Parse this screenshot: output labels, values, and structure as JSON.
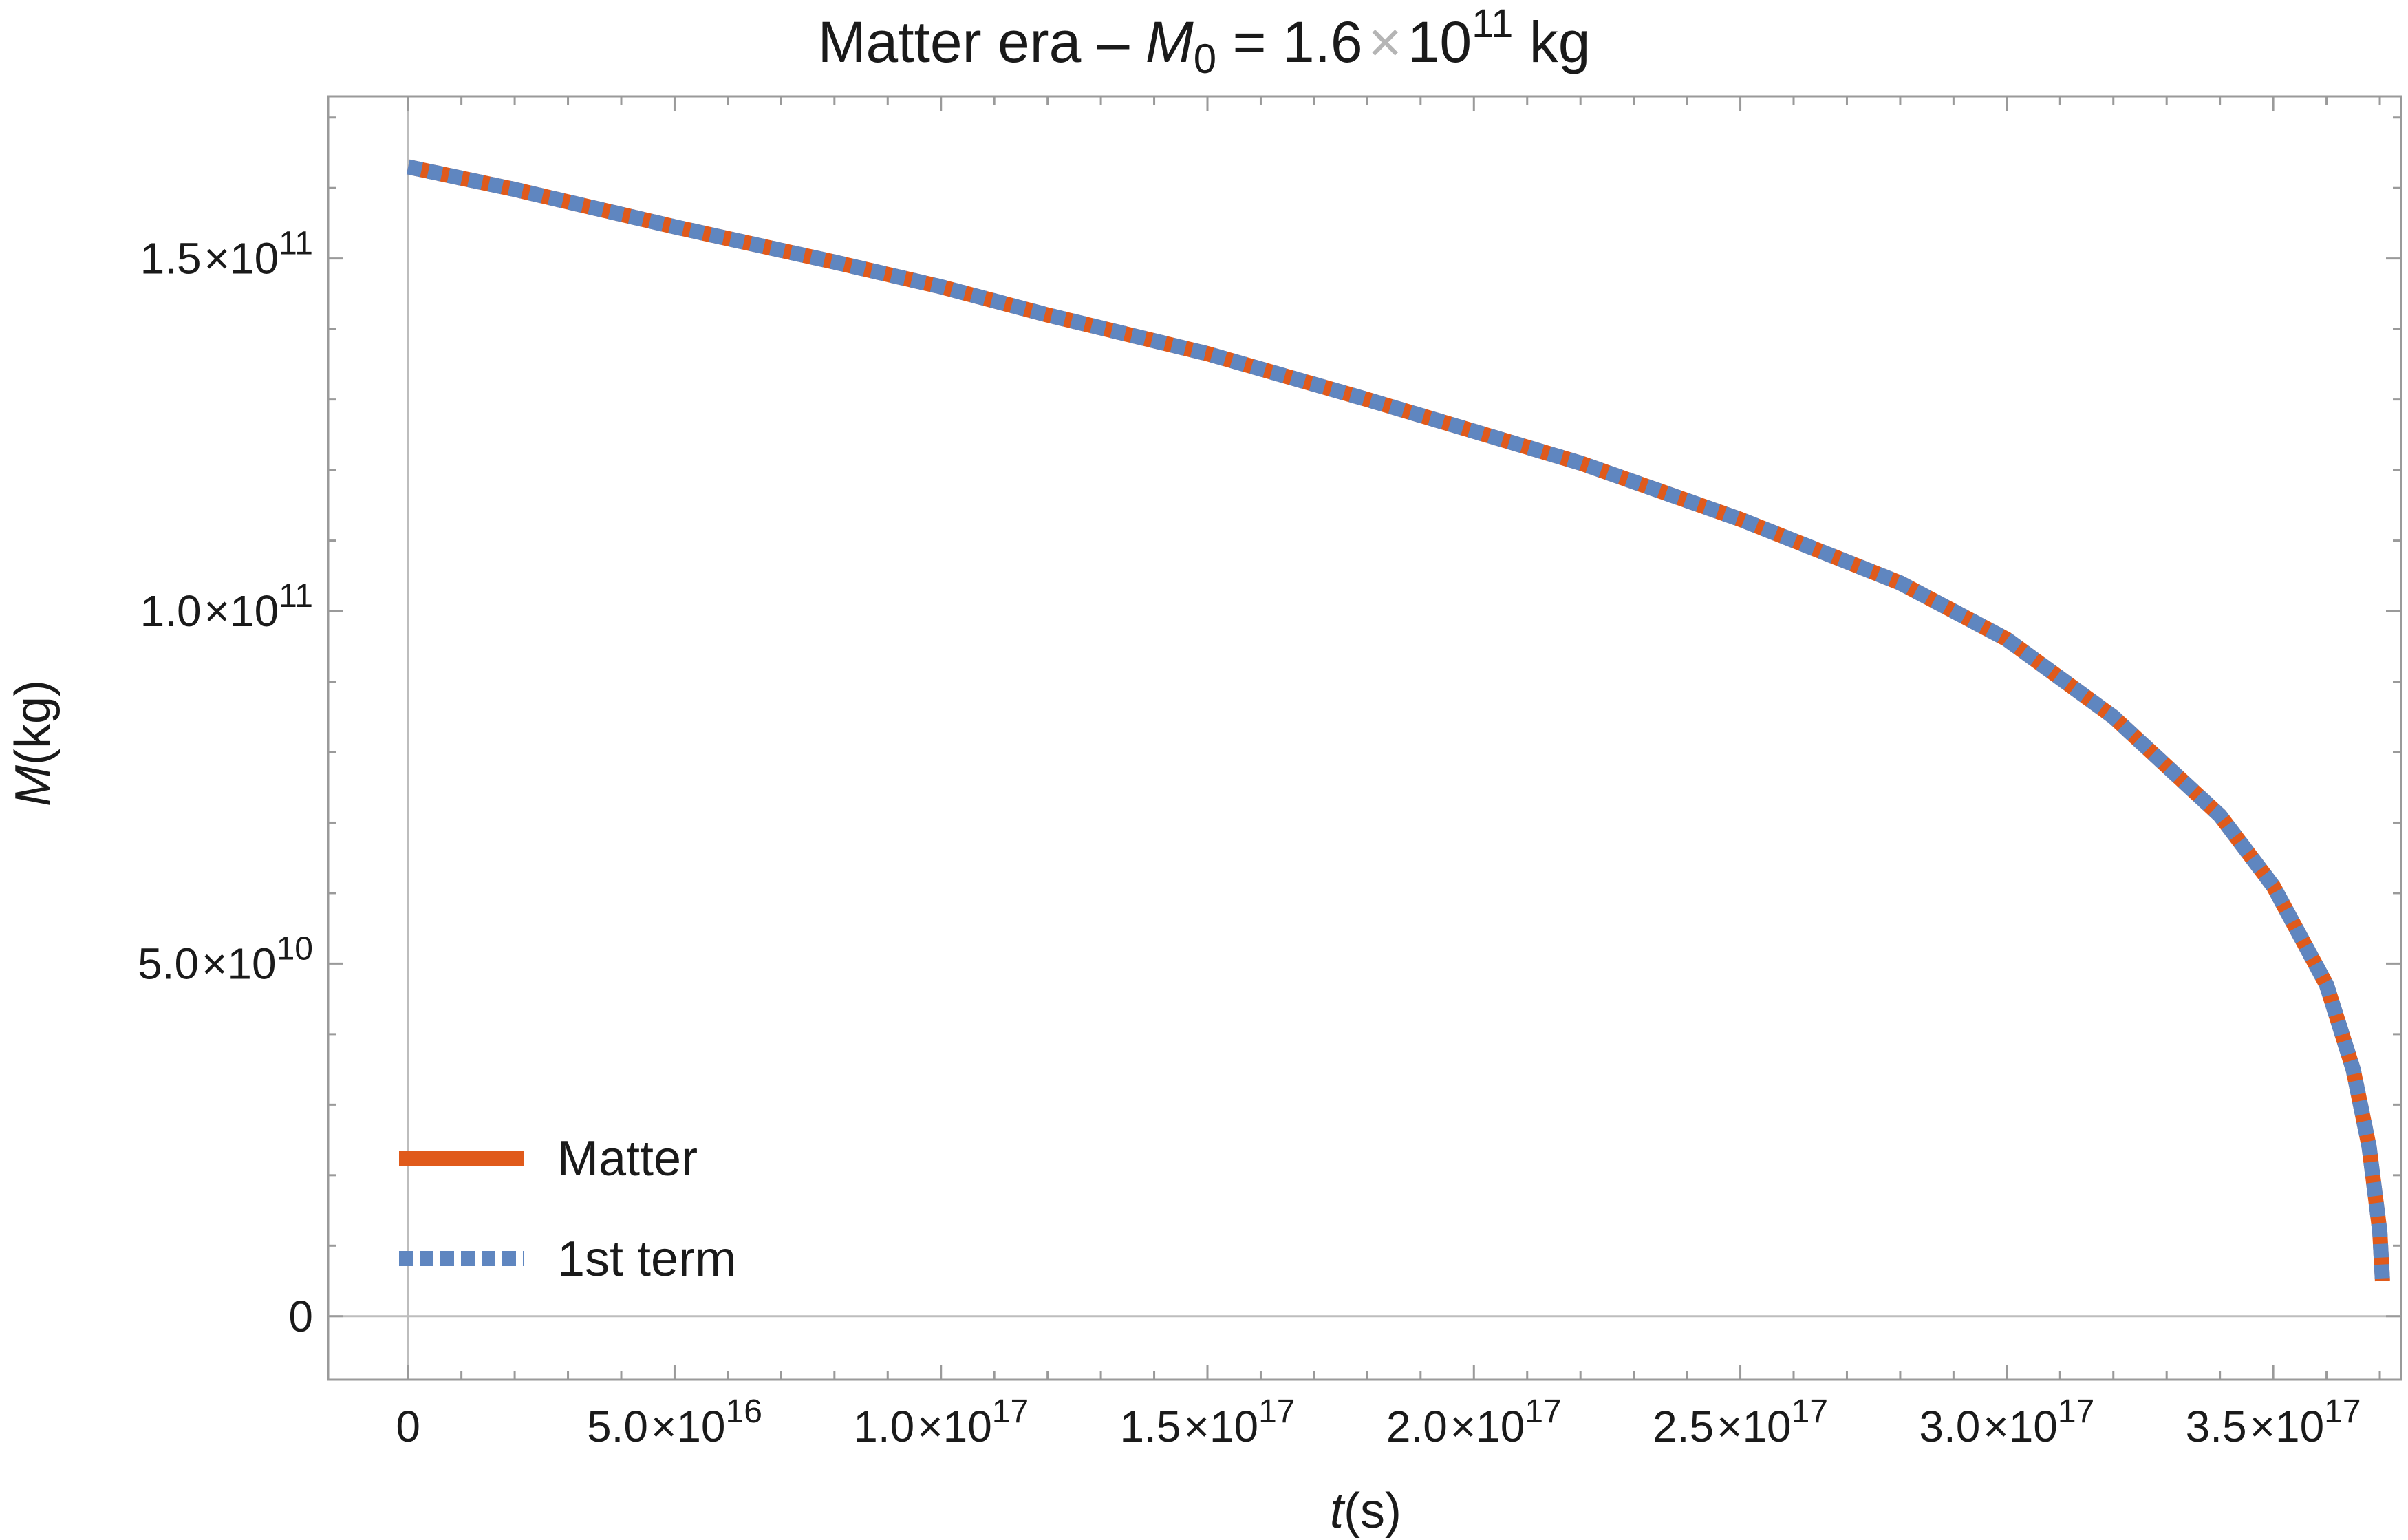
{
  "chart_data": {
    "type": "line",
    "title": {
      "prefix": "Matter era – ",
      "symbol": "M",
      "subscript": "0",
      "equals": " = 1.6",
      "times": "×",
      "base": "10",
      "exponent": "11",
      "unit": " kg"
    },
    "xlabel": {
      "symbol": "t",
      "rest": "(s)"
    },
    "ylabel": {
      "symbol": "M",
      "rest": "(kg)"
    },
    "xlim": [
      -1.5e+16,
      3.74e+17
    ],
    "ylim": [
      -9000000000.0,
      173000000000.0
    ],
    "x_ticks": [
      {
        "value": 0,
        "mantissa": "0",
        "exponent": ""
      },
      {
        "value": 5e+16,
        "mantissa": "5.0",
        "exponent": "16"
      },
      {
        "value": 1e+17,
        "mantissa": "1.0",
        "exponent": "17"
      },
      {
        "value": 1.5e+17,
        "mantissa": "1.5",
        "exponent": "17"
      },
      {
        "value": 2e+17,
        "mantissa": "2.0",
        "exponent": "17"
      },
      {
        "value": 2.5e+17,
        "mantissa": "2.5",
        "exponent": "17"
      },
      {
        "value": 3e+17,
        "mantissa": "3.0",
        "exponent": "17"
      },
      {
        "value": 3.5e+17,
        "mantissa": "3.5",
        "exponent": "17"
      }
    ],
    "y_ticks": [
      {
        "value": 0,
        "mantissa": "0",
        "exponent": ""
      },
      {
        "value": 50000000000.0,
        "mantissa": "5.0",
        "exponent": "10"
      },
      {
        "value": 100000000000.0,
        "mantissa": "1.0",
        "exponent": "11"
      },
      {
        "value": 150000000000.0,
        "mantissa": "1.5",
        "exponent": "11"
      }
    ],
    "x_minor_step": 1e+16,
    "y_minor_step": 10000000000.0,
    "series": [
      {
        "name": "Matter",
        "color": "#e05a1b",
        "style": "solid",
        "x": [
          0,
          2e+16,
          5e+16,
          8e+16,
          1e+17,
          1.2e+17,
          1.5e+17,
          1.8e+17,
          2e+17,
          2.2e+17,
          2.5e+17,
          2.8e+17,
          3e+17,
          3.2e+17,
          3.4e+17,
          3.5e+17,
          3.6e+17,
          3.65e+17,
          3.68e+17,
          3.7e+17,
          3.705e+17
        ],
        "y": [
          163000000000.0,
          159800000000.0,
          154500000000.0,
          149500000000.0,
          146000000000.0,
          142000000000.0,
          136500000000.0,
          130000000000.0,
          125500000000.0,
          121000000000.0,
          113000000000.0,
          104000000000.0,
          96000000000.0,
          85000000000.0,
          71000000000.0,
          61000000000.0,
          47000000000.0,
          35000000000.0,
          24000000000.0,
          12000000000.0,
          5000000000.0
        ]
      },
      {
        "name": "1st term",
        "color": "#5f86c0",
        "style": "dotted",
        "x": [
          0,
          2e+16,
          5e+16,
          8e+16,
          1e+17,
          1.2e+17,
          1.5e+17,
          1.8e+17,
          2e+17,
          2.2e+17,
          2.5e+17,
          2.8e+17,
          3e+17,
          3.2e+17,
          3.4e+17,
          3.5e+17,
          3.6e+17,
          3.65e+17,
          3.68e+17,
          3.7e+17,
          3.705e+17
        ],
        "y": [
          163000000000.0,
          159800000000.0,
          154500000000.0,
          149500000000.0,
          146000000000.0,
          142000000000.0,
          136500000000.0,
          130000000000.0,
          125500000000.0,
          121000000000.0,
          113000000000.0,
          104000000000.0,
          96000000000.0,
          85000000000.0,
          71000000000.0,
          61000000000.0,
          47000000000.0,
          35000000000.0,
          24000000000.0,
          12000000000.0,
          5000000000.0
        ]
      }
    ],
    "legend_position": "bottom-left",
    "grid": false,
    "colors": {
      "frame": "#9a9a9a",
      "zero_line": "#bdbdbd",
      "times_sign": "#b5b5b5"
    }
  }
}
